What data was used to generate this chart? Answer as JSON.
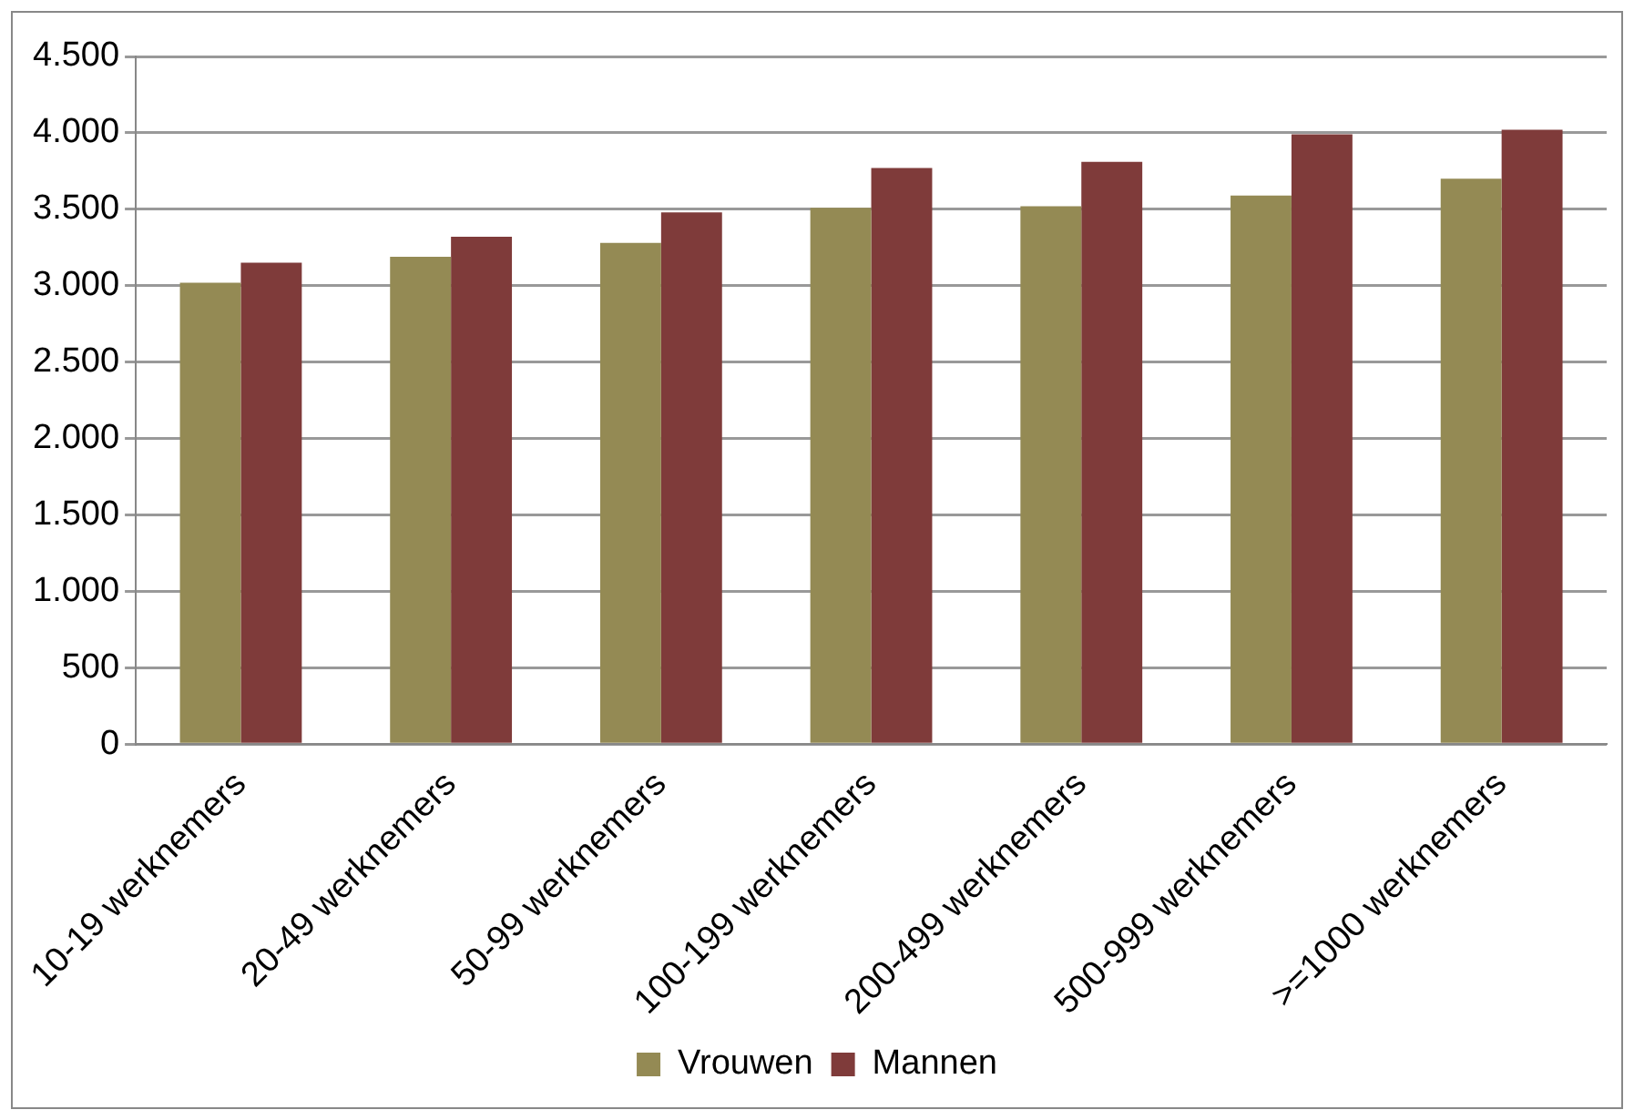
{
  "chart_data": {
    "type": "bar",
    "categories": [
      "10-19 werknemers",
      "20-49 werknemers",
      "50-99 werknemers",
      "100-199 werknemers",
      "200-499 werknemers",
      "500-999 werknemers",
      ">=1000 werknemers"
    ],
    "series": [
      {
        "name": "Vrouwen",
        "color": "#948a54",
        "values": [
          3020,
          3190,
          3280,
          3510,
          3520,
          3590,
          3700
        ]
      },
      {
        "name": "Mannen",
        "color": "#7f3b3a",
        "values": [
          3150,
          3320,
          3480,
          3770,
          3810,
          3990,
          4020
        ]
      }
    ],
    "ylim": [
      0,
      4500
    ],
    "yticks": [
      0,
      500,
      {
        "value": 1000,
        "label": "1.000"
      },
      {
        "value": 1500,
        "label": "1.500"
      },
      {
        "value": 2000,
        "label": "2.000"
      },
      {
        "value": 2500,
        "label": "2.500"
      },
      {
        "value": 3000,
        "label": "3.000"
      },
      {
        "value": 3500,
        "label": "3.500"
      },
      {
        "value": 4000,
        "label": "4.000"
      },
      {
        "value": 4500,
        "label": "4.500"
      }
    ],
    "grid": "y",
    "legend": "bottom"
  }
}
